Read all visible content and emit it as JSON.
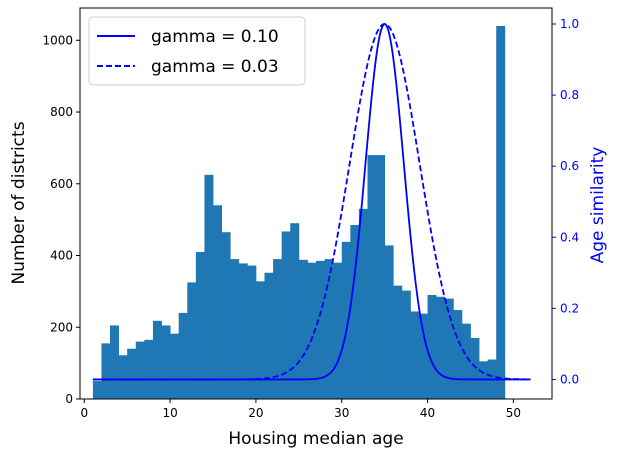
{
  "chart_data": {
    "type": "bar",
    "title": "",
    "xlabel": "Housing median age",
    "ylabel": "Number of districts",
    "y2label": "Age similarity",
    "xlim": [
      -0.5,
      54.5
    ],
    "ylim": [
      0,
      1090
    ],
    "y2lim": [
      -0.055,
      1.045
    ],
    "xticks": [
      0,
      10,
      20,
      30,
      40,
      50
    ],
    "yticks": [
      0,
      200,
      400,
      600,
      800,
      1000
    ],
    "y2ticks": [
      0.0,
      0.2,
      0.4,
      0.6,
      0.8,
      1.0
    ],
    "y2_tick_labels": [
      "0.0",
      "0.2",
      "0.4",
      "0.6",
      "0.8",
      "1.0"
    ],
    "grid": false,
    "legend_position": "upper-left",
    "bar_color": "#1f77b4",
    "line_color": "#0000ff",
    "histogram": {
      "bin_start": 1,
      "bin_width": 1.0,
      "values": [
        50,
        155,
        205,
        122,
        140,
        160,
        165,
        218,
        205,
        182,
        240,
        325,
        410,
        625,
        540,
        465,
        390,
        378,
        372,
        328,
        352,
        390,
        467,
        490,
        388,
        380,
        385,
        390,
        380,
        438,
        485,
        530,
        680,
        680,
        428,
        316,
        302,
        244,
        238,
        290,
        285,
        280,
        248,
        210,
        170,
        105,
        110,
        1040
      ]
    },
    "series": [
      {
        "name": "gamma = 0.10",
        "style": "solid",
        "center": 35,
        "gamma": 0.1,
        "x_range": [
          1,
          52
        ]
      },
      {
        "name": "gamma = 0.03",
        "style": "dashed",
        "center": 35,
        "gamma": 0.03,
        "x_range": [
          1,
          52
        ]
      }
    ]
  }
}
